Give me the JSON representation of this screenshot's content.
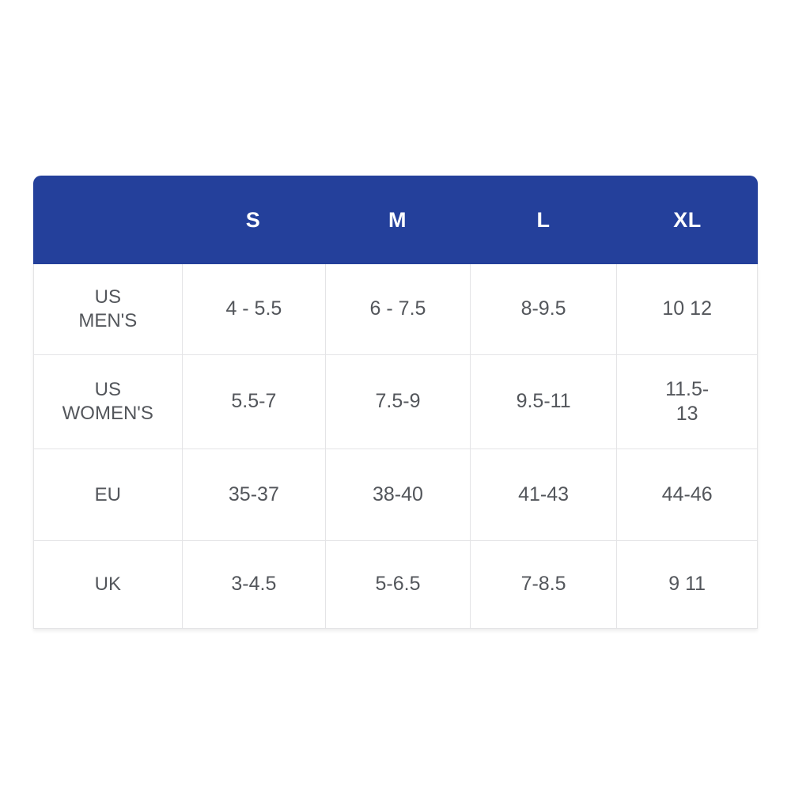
{
  "size_chart": {
    "header": {
      "corner_label": "",
      "columns": [
        "S",
        "M",
        "L",
        "XL"
      ],
      "bg_color": "#24409b",
      "text_color": "#ffffff"
    },
    "rows": [
      {
        "label": "US\nMEN'S",
        "values": [
          "4 - 5.5",
          "6 - 7.5",
          "8-9.5",
          "10 12"
        ]
      },
      {
        "label": "US\nWOMEN'S",
        "values": [
          "5.5-7",
          "7.5-9",
          "9.5-11",
          "11.5-\n13"
        ]
      },
      {
        "label": "EU",
        "values": [
          "35-37",
          "38-40",
          "41-43",
          "44-46"
        ]
      },
      {
        "label": "UK",
        "values": [
          "3-4.5",
          "5-6.5",
          "7-8.5",
          "9 11"
        ]
      }
    ],
    "border_color": "#e4e4e6",
    "text_color": "#53565b",
    "background_color": "#ffffff"
  },
  "chart_data": {
    "type": "table",
    "columns": [
      "",
      "S",
      "M",
      "L",
      "XL"
    ],
    "rows": [
      [
        "US MEN'S",
        "4 - 5.5",
        "6 - 7.5",
        "8-9.5",
        "10 12"
      ],
      [
        "US WOMEN'S",
        "5.5-7",
        "7.5-9",
        "9.5-11",
        "11.5-13"
      ],
      [
        "EU",
        "35-37",
        "38-40",
        "41-43",
        "44-46"
      ],
      [
        "UK",
        "3-4.5",
        "5-6.5",
        "7-8.5",
        "9 11"
      ]
    ],
    "layout": {
      "header_fill": "#24409b",
      "header_text": "#ffffff",
      "grid": true
    }
  }
}
